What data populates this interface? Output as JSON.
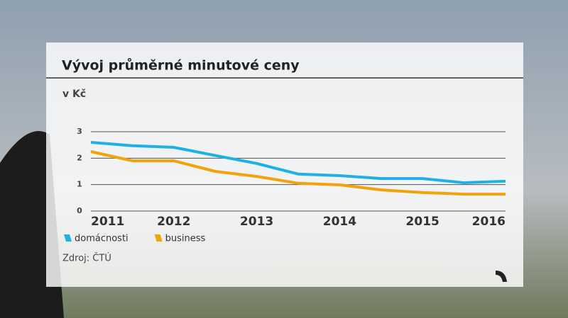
{
  "chart_data": {
    "type": "line",
    "title": "Vývoj průměrné minutové ceny",
    "subtitle": "v Kč",
    "source": "Zdroj: ČTÚ",
    "categories": [
      "2011",
      null,
      "2012",
      null,
      "2013",
      null,
      "2014",
      null,
      "2015",
      null,
      "2016"
    ],
    "series": [
      {
        "name": "domácnosti",
        "color": "#1fb0e6",
        "values": [
          2.6,
          2.47,
          2.41,
          2.1,
          1.8,
          1.4,
          1.34,
          1.23,
          1.23,
          1.07,
          1.13
        ]
      },
      {
        "name": "business",
        "color": "#f0a30a",
        "values": [
          2.25,
          1.9,
          1.9,
          1.5,
          1.31,
          1.05,
          0.99,
          0.8,
          0.7,
          0.64,
          0.64
        ]
      }
    ],
    "ylim": [
      0,
      3
    ],
    "yticks": [
      0,
      1,
      2,
      3
    ],
    "grid": true,
    "legend": "bottom-left"
  }
}
